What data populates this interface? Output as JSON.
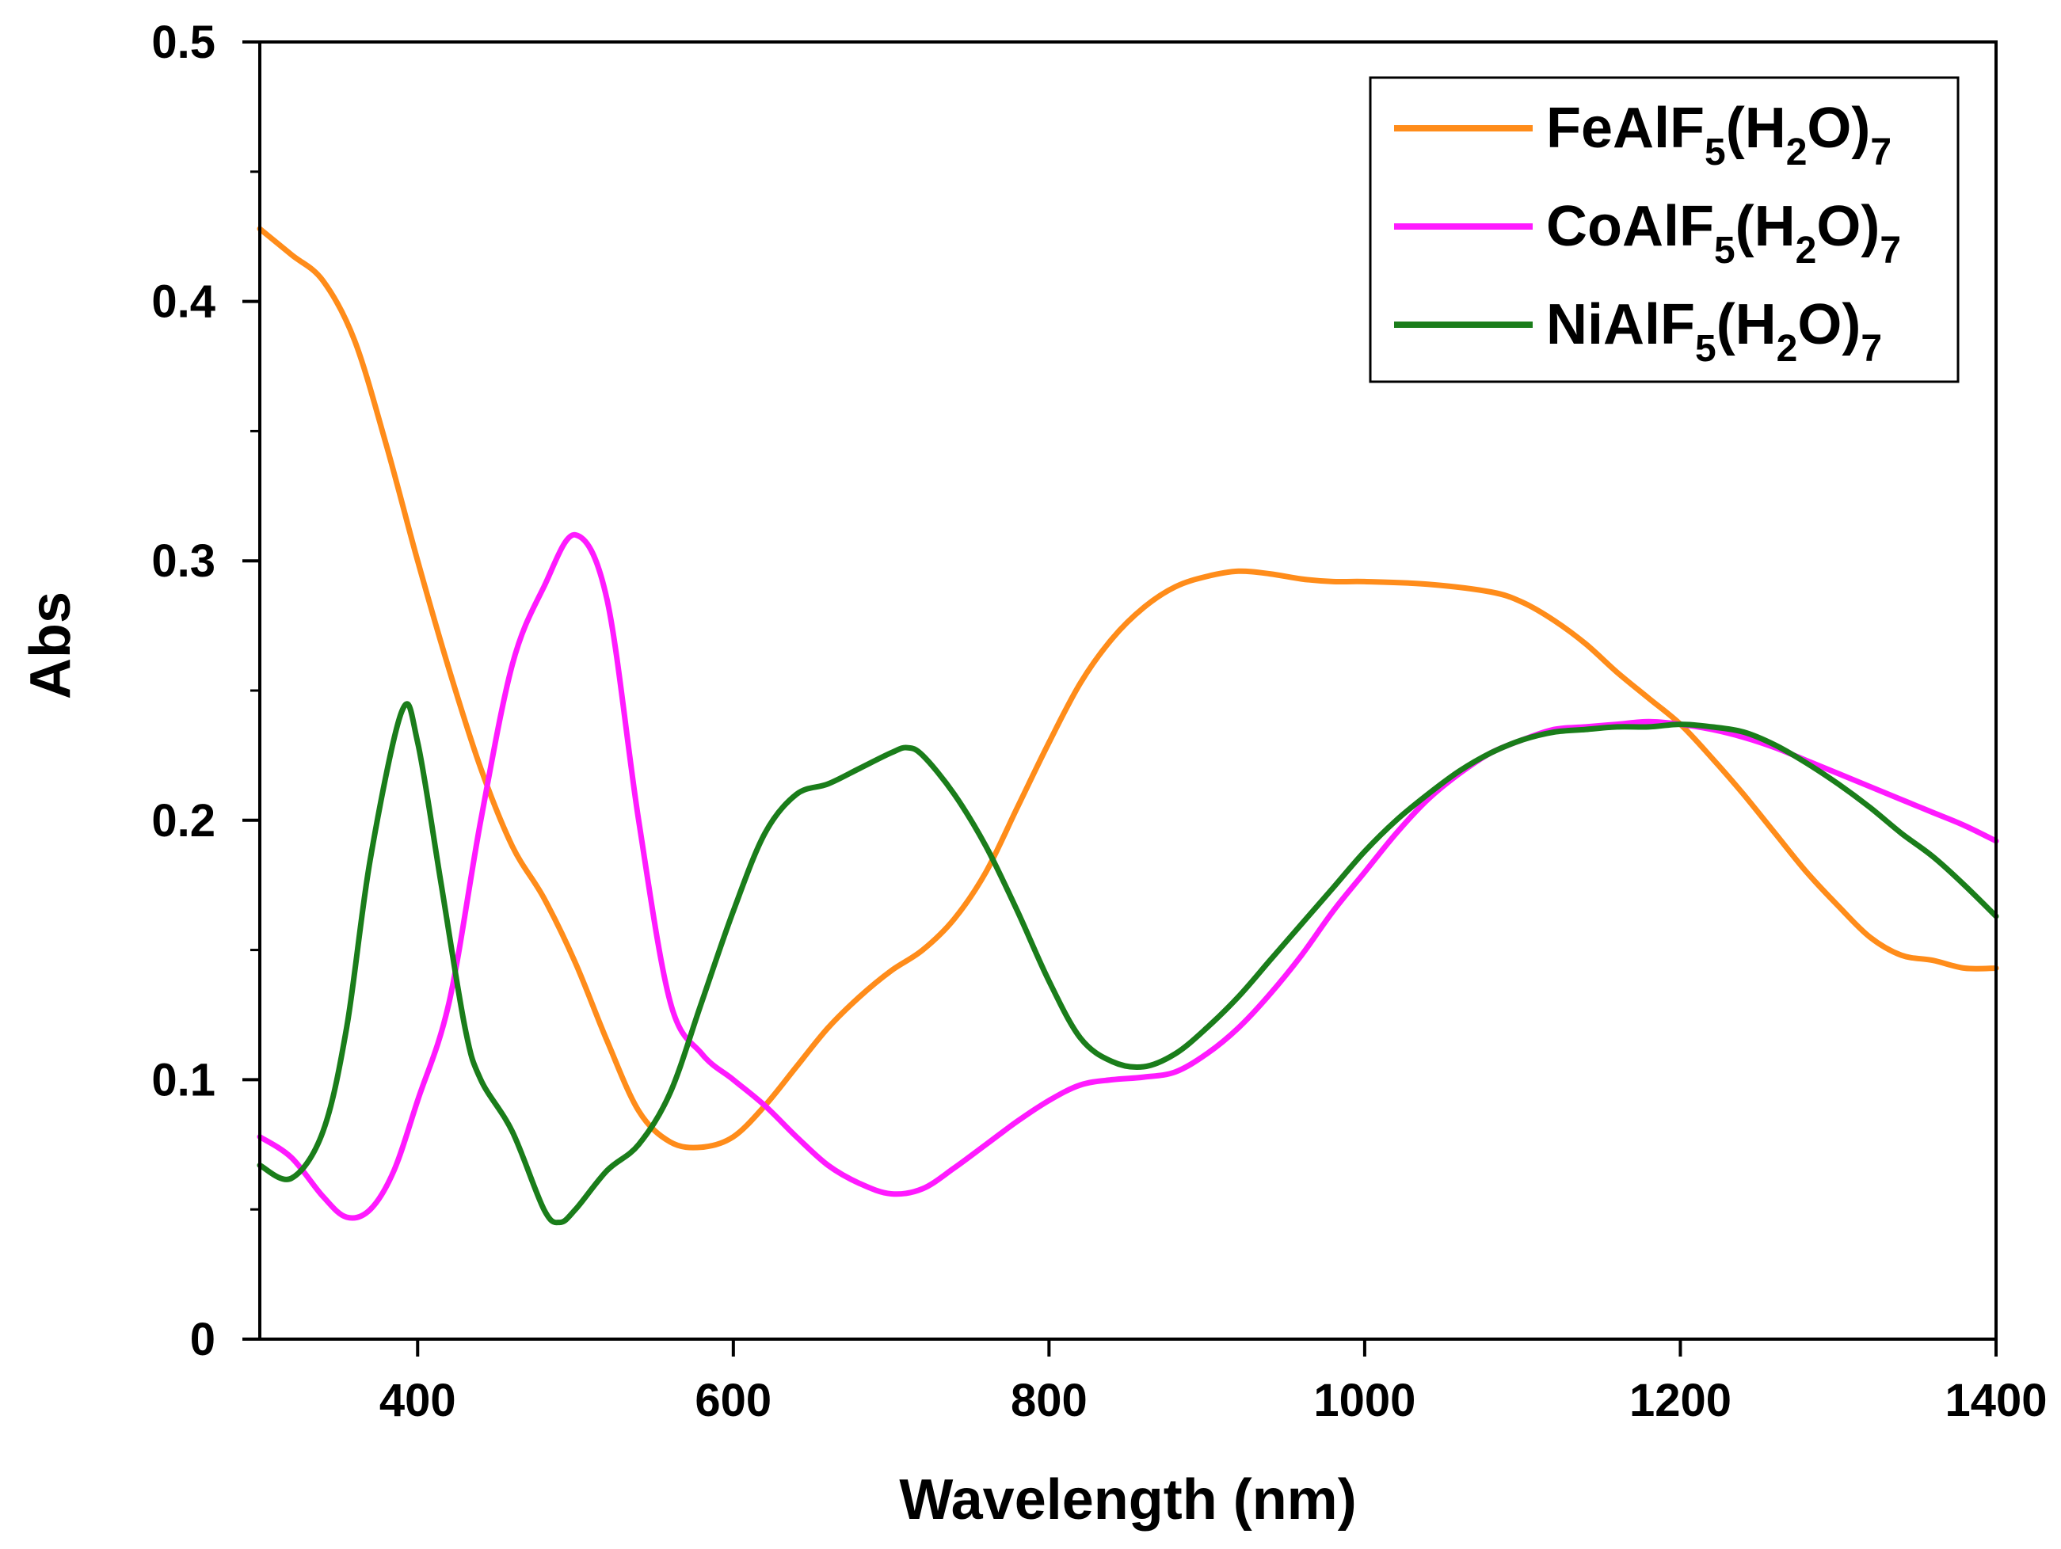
{
  "chart_data": {
    "type": "line",
    "title": "",
    "xlabel": "Wavelength (nm)",
    "ylabel": "Abs",
    "xlim": [
      300,
      1400
    ],
    "ylim": [
      0,
      0.5
    ],
    "xticks": [
      400,
      600,
      800,
      1000,
      1200,
      1400
    ],
    "xtick_labels": [
      "400",
      "600",
      "800",
      "1000",
      "1200",
      "1400"
    ],
    "yticks": [
      0,
      0.1,
      0.2,
      0.3,
      0.4,
      0.5
    ],
    "ytick_labels": [
      "0",
      "0.1",
      "0.2",
      "0.3",
      "0.4",
      "0.5"
    ],
    "grid": false,
    "legend_position": "top-right",
    "series": [
      {
        "name": "FeAlF5(H2O)7",
        "label_parts": {
          "main": "FeAlF",
          "sub1": "5",
          "mid": "(H",
          "sub2": "2",
          "end": "O)",
          "sub3": "7"
        },
        "color": "#FF8C1A",
        "x": [
          300,
          320,
          340,
          360,
          380,
          400,
          420,
          440,
          460,
          480,
          500,
          520,
          540,
          560,
          580,
          600,
          620,
          640,
          660,
          680,
          700,
          720,
          740,
          760,
          780,
          800,
          820,
          840,
          860,
          880,
          900,
          920,
          940,
          960,
          980,
          1000,
          1040,
          1080,
          1100,
          1120,
          1140,
          1160,
          1180,
          1200,
          1220,
          1240,
          1260,
          1280,
          1300,
          1320,
          1340,
          1360,
          1380,
          1400
        ],
        "y": [
          0.428,
          0.418,
          0.408,
          0.385,
          0.345,
          0.3,
          0.258,
          0.22,
          0.19,
          0.17,
          0.145,
          0.115,
          0.088,
          0.076,
          0.074,
          0.078,
          0.09,
          0.105,
          0.12,
          0.132,
          0.142,
          0.15,
          0.162,
          0.18,
          0.205,
          0.23,
          0.253,
          0.27,
          0.282,
          0.29,
          0.294,
          0.296,
          0.295,
          0.293,
          0.292,
          0.292,
          0.291,
          0.288,
          0.284,
          0.277,
          0.268,
          0.257,
          0.247,
          0.237,
          0.224,
          0.21,
          0.195,
          0.18,
          0.167,
          0.155,
          0.148,
          0.146,
          0.143,
          0.143
        ]
      },
      {
        "name": "CoAlF5(H2O)7",
        "label_parts": {
          "main": "CoAlF",
          "sub1": "5",
          "mid": "(H",
          "sub2": "2",
          "end": "O)",
          "sub3": "7"
        },
        "color": "#FF1AFF",
        "x": [
          300,
          320,
          340,
          355,
          370,
          385,
          400,
          420,
          440,
          460,
          480,
          500,
          520,
          540,
          560,
          580,
          600,
          620,
          640,
          660,
          680,
          700,
          720,
          740,
          760,
          780,
          800,
          820,
          840,
          860,
          880,
          900,
          920,
          940,
          960,
          980,
          1000,
          1020,
          1040,
          1060,
          1080,
          1100,
          1120,
          1140,
          1160,
          1180,
          1200,
          1220,
          1240,
          1260,
          1280,
          1300,
          1320,
          1340,
          1360,
          1380,
          1400
        ],
        "y": [
          0.078,
          0.07,
          0.055,
          0.047,
          0.05,
          0.065,
          0.092,
          0.13,
          0.2,
          0.26,
          0.29,
          0.31,
          0.285,
          0.2,
          0.13,
          0.11,
          0.1,
          0.09,
          0.078,
          0.067,
          0.06,
          0.056,
          0.058,
          0.066,
          0.075,
          0.084,
          0.092,
          0.098,
          0.1,
          0.101,
          0.103,
          0.11,
          0.12,
          0.133,
          0.148,
          0.165,
          0.18,
          0.195,
          0.208,
          0.218,
          0.226,
          0.231,
          0.235,
          0.236,
          0.237,
          0.238,
          0.237,
          0.235,
          0.232,
          0.228,
          0.223,
          0.218,
          0.213,
          0.208,
          0.203,
          0.198,
          0.192
        ]
      },
      {
        "name": "NiAlF5(H2O)7",
        "label_parts": {
          "main": "NiAlF",
          "sub1": "5",
          "mid": "(H",
          "sub2": "2",
          "end": "O)",
          "sub3": "7"
        },
        "color": "#1A7D1A",
        "x": [
          300,
          320,
          340,
          355,
          370,
          390,
          400,
          415,
          430,
          440,
          460,
          480,
          490,
          500,
          520,
          540,
          560,
          580,
          600,
          620,
          640,
          660,
          680,
          700,
          710,
          720,
          740,
          760,
          780,
          800,
          820,
          840,
          860,
          880,
          900,
          920,
          940,
          960,
          980,
          1000,
          1020,
          1040,
          1060,
          1080,
          1100,
          1120,
          1140,
          1160,
          1180,
          1200,
          1220,
          1240,
          1260,
          1280,
          1300,
          1320,
          1340,
          1360,
          1380,
          1400
        ],
        "y": [
          0.067,
          0.062,
          0.08,
          0.12,
          0.185,
          0.242,
          0.23,
          0.175,
          0.12,
          0.1,
          0.08,
          0.05,
          0.045,
          0.05,
          0.065,
          0.075,
          0.095,
          0.13,
          0.165,
          0.195,
          0.21,
          0.214,
          0.22,
          0.226,
          0.228,
          0.225,
          0.21,
          0.19,
          0.165,
          0.138,
          0.116,
          0.107,
          0.105,
          0.11,
          0.12,
          0.132,
          0.146,
          0.16,
          0.174,
          0.188,
          0.2,
          0.21,
          0.219,
          0.226,
          0.231,
          0.234,
          0.235,
          0.236,
          0.236,
          0.237,
          0.236,
          0.234,
          0.229,
          0.222,
          0.214,
          0.205,
          0.195,
          0.186,
          0.175,
          0.163
        ]
      }
    ]
  }
}
